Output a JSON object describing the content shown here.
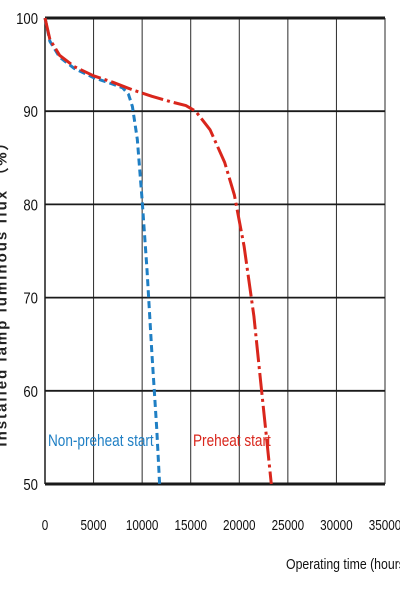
{
  "chart_data": {
    "type": "line",
    "title": "",
    "xlabel": "Operating time (hours)",
    "ylabel": "Installed lamp luminous flux （%）",
    "xlim": [
      0,
      35000
    ],
    "ylim": [
      50,
      100
    ],
    "x_ticks": [
      "0",
      "5000",
      "10000",
      "15000",
      "20000",
      "25000",
      "30000",
      "35000"
    ],
    "y_ticks": [
      "100",
      "90",
      "80",
      "70",
      "60",
      "50"
    ],
    "grid": true,
    "series": [
      {
        "name": "Non-preheat start",
        "color": "#1f7fc4",
        "line_style": "dashed",
        "points": [
          [
            0,
            100
          ],
          [
            500,
            97.5
          ],
          [
            1500,
            95.8
          ],
          [
            3000,
            94.6
          ],
          [
            5000,
            93.6
          ],
          [
            7000,
            92.9
          ],
          [
            8000,
            92.5
          ],
          [
            8600,
            91.8
          ],
          [
            9000,
            90.5
          ],
          [
            9500,
            87.0
          ],
          [
            10000,
            80.5
          ],
          [
            10500,
            73.0
          ],
          [
            11000,
            64.0
          ],
          [
            11500,
            56.0
          ],
          [
            11800,
            50.0
          ]
        ]
      },
      {
        "name": "Preheat start",
        "color": "#d9261c",
        "line_style": "long-dash",
        "points": [
          [
            0,
            100
          ],
          [
            500,
            97.7
          ],
          [
            1500,
            96.0
          ],
          [
            3000,
            94.8
          ],
          [
            5000,
            93.8
          ],
          [
            7000,
            93.1
          ],
          [
            9000,
            92.3
          ],
          [
            11000,
            91.6
          ],
          [
            13000,
            91.0
          ],
          [
            14500,
            90.6
          ],
          [
            15500,
            90.0
          ],
          [
            17000,
            88.0
          ],
          [
            18500,
            84.5
          ],
          [
            19500,
            81.0
          ],
          [
            20500,
            75.5
          ],
          [
            21500,
            68.0
          ],
          [
            22300,
            60.0
          ],
          [
            22800,
            55.0
          ],
          [
            23300,
            50.0
          ]
        ]
      }
    ],
    "annotations": [
      {
        "text": "Non-preheat start",
        "color": "#1f7fc4"
      },
      {
        "text": "Preheat start",
        "color": "#d9261c"
      }
    ]
  }
}
